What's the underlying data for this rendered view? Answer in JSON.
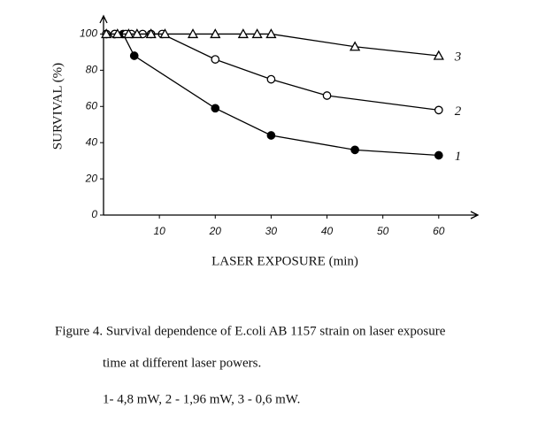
{
  "chart_data": {
    "type": "line",
    "y_label": "SURVIVAL (%)",
    "x_label": "LASER EXPOSURE (min)",
    "caption": [
      "Figure 4. Survival dependence of E.coli AB 1157 strain on laser exposure",
      "time at different laser  powers.",
      "1- 4,8 mW, 2 - 1,96 mW, 3 - 0,6 mW."
    ],
    "xlim": [
      0,
      67
    ],
    "ylim": [
      0,
      110
    ],
    "xticks": [
      10,
      20,
      30,
      40,
      50,
      60
    ],
    "yticks": [
      0,
      20,
      40,
      60,
      80,
      100
    ],
    "series": [
      {
        "name": "1",
        "color": "#000",
        "marker": "filled-circle",
        "x": [
          0.5,
          2,
          3.5,
          5.5,
          20,
          30,
          45,
          60
        ],
        "values": [
          100,
          100,
          100,
          88,
          59,
          44,
          36,
          33
        ]
      },
      {
        "name": "2",
        "color": "#000",
        "marker": "circle",
        "x": [
          0.5,
          2,
          4,
          5,
          7,
          8.5,
          10.5,
          20,
          30,
          40,
          60
        ],
        "values": [
          100,
          100,
          100,
          100,
          100,
          100,
          100,
          86,
          75,
          66,
          58
        ]
      },
      {
        "name": "3",
        "color": "#000",
        "marker": "triangle",
        "x": [
          0.5,
          2.5,
          4.5,
          6,
          8.5,
          11,
          16,
          20,
          25,
          27.5,
          30,
          45,
          60
        ],
        "values": [
          100,
          100,
          100,
          100,
          100,
          100,
          100,
          100,
          100,
          100,
          100,
          93,
          88
        ]
      }
    ]
  }
}
